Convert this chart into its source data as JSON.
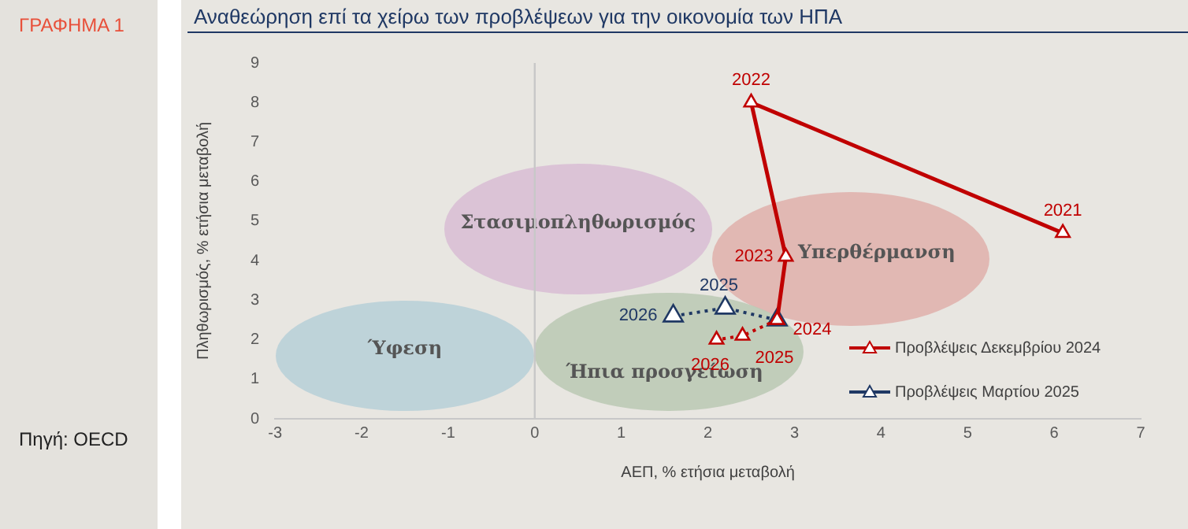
{
  "chart_data": {
    "type": "scatter",
    "title": "Αναθεώρηση επί τα χείρω των προβλέψεων για την οικονομία των ΗΠΑ",
    "xlabel": "ΑΕΠ, % ετήσια μεταβολή",
    "ylabel": "Πληθωρισμός, % ετήσια μεταβολή",
    "xlim": [
      -3,
      7
    ],
    "xticks": [
      -3,
      -2,
      -1,
      0,
      1,
      2,
      3,
      4,
      5,
      6,
      7
    ],
    "ylim": [
      0,
      9
    ],
    "yticks": [
      0,
      1,
      2,
      3,
      4,
      5,
      6,
      7,
      8,
      9
    ],
    "grid": false,
    "legend": "bottom right",
    "marker": "triangle",
    "series": [
      {
        "name": "Προβλέψεις Δεκεμβρίου 2024",
        "type": "line",
        "color": "#c00000",
        "line_style": "solid",
        "x": [
          6.1,
          2.5,
          2.9,
          2.8
        ],
        "values": [
          4.7,
          8,
          4.1,
          2.5
        ]
      },
      {
        "type": "line",
        "color": "#c00000",
        "line_style": "dotted",
        "x": [
          2.8,
          2.4,
          2.1
        ],
        "values": [
          2.5,
          2.1,
          2.0
        ]
      },
      {
        "name": "Προβλέψεις Μαρτίου 2025",
        "type": "line",
        "color": "#1f3864",
        "line_style": "dotted",
        "x": [
          2.8,
          2.2,
          1.6
        ],
        "values": [
          2.5,
          2.8,
          2.6
        ]
      }
    ],
    "ref_lines": [
      {
        "axis": "x",
        "value": 0,
        "color": "#c8c8c8"
      }
    ],
    "annotations": [
      "ΓΡΑΦΗΜΑ 1",
      "Πηγή: OECD",
      "Στασιμοπληθωρισμός",
      "Υπερθέρμανση",
      "Ύφεση",
      "Ήπια προσγείωση",
      {
        "text": "2021",
        "x": 6.1,
        "y": 4.7
      },
      {
        "text": "2022",
        "x": 2.5,
        "y": 8
      },
      {
        "text": "2023",
        "x": 2.9,
        "y": 4.1
      },
      {
        "text": "2024",
        "x": 2.8,
        "y": 2.5
      },
      {
        "text": "2025",
        "x": 2.4,
        "y": 2.1
      },
      {
        "text": "2026",
        "x": 2.1,
        "y": 2.0
      },
      {
        "text": "2025",
        "x": 2.2,
        "y": 2.8
      },
      {
        "text": "2026",
        "x": 1.6,
        "y": 2.6
      }
    ]
  }
}
